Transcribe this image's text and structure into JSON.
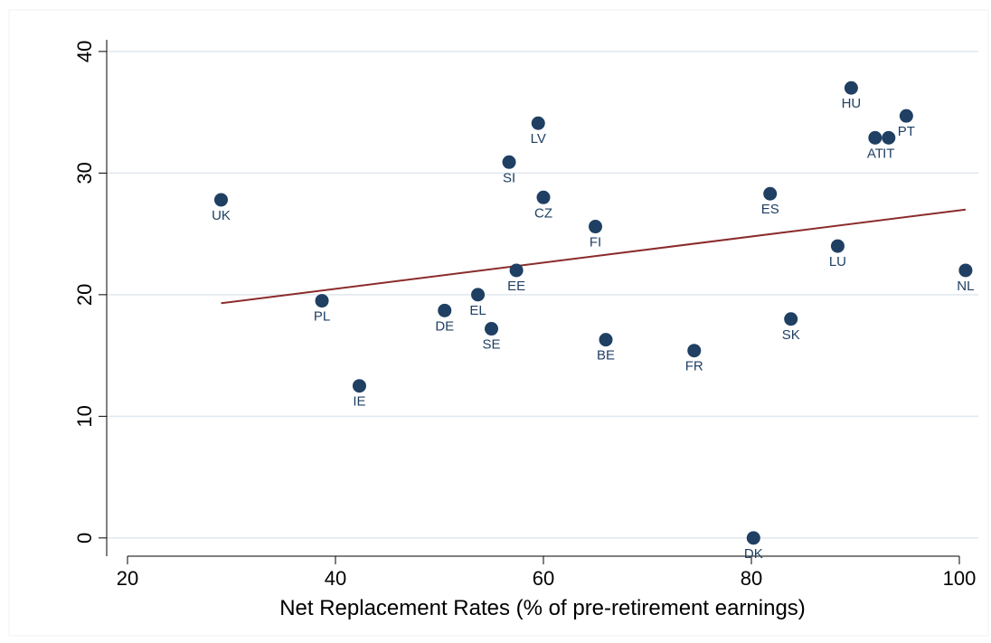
{
  "chart_data": {
    "type": "scatter",
    "title": "",
    "xlabel": "Net Replacement Rates (% of pre-retirement earnings)",
    "ylabel": "",
    "xlim": [
      18,
      102
    ],
    "ylim": [
      -1.5,
      42
    ],
    "xticks": [
      20,
      40,
      60,
      80,
      100
    ],
    "yticks": [
      0,
      10,
      20,
      30,
      40
    ],
    "grid": "horizontal",
    "legend": "none",
    "colors": {
      "points": "#1f3f63",
      "labels": "#1f3f63",
      "fit_line": "#8b2b2b",
      "grid": "#dfe8ee",
      "axis": "#000000"
    },
    "points": [
      {
        "label": "UK",
        "x": 29.0,
        "y": 27.8
      },
      {
        "label": "PL",
        "x": 38.7,
        "y": 19.5
      },
      {
        "label": "IE",
        "x": 42.3,
        "y": 12.5
      },
      {
        "label": "DE",
        "x": 50.5,
        "y": 18.7
      },
      {
        "label": "EL",
        "x": 53.7,
        "y": 20.0
      },
      {
        "label": "SE",
        "x": 55.0,
        "y": 17.2
      },
      {
        "label": "EE",
        "x": 57.4,
        "y": 22.0
      },
      {
        "label": "SI",
        "x": 56.7,
        "y": 30.9
      },
      {
        "label": "LV",
        "x": 59.5,
        "y": 34.1
      },
      {
        "label": "CZ",
        "x": 60.0,
        "y": 28.0
      },
      {
        "label": "FI",
        "x": 65.0,
        "y": 25.6
      },
      {
        "label": "BE",
        "x": 66.0,
        "y": 16.3
      },
      {
        "label": "FR",
        "x": 74.5,
        "y": 15.4
      },
      {
        "label": "DK",
        "x": 80.2,
        "y": 0.0
      },
      {
        "label": "ES",
        "x": 81.8,
        "y": 28.3
      },
      {
        "label": "SK",
        "x": 83.8,
        "y": 18.0
      },
      {
        "label": "LU",
        "x": 88.3,
        "y": 24.0
      },
      {
        "label": "HU",
        "x": 89.6,
        "y": 37.0
      },
      {
        "label": "AT",
        "x": 91.9,
        "y": 32.9
      },
      {
        "label": "IT",
        "x": 93.2,
        "y": 32.9
      },
      {
        "label": "PT",
        "x": 94.9,
        "y": 34.7
      },
      {
        "label": "NL",
        "x": 100.6,
        "y": 22.0
      }
    ],
    "fit_line": {
      "x": [
        29.0,
        100.6
      ],
      "y": [
        19.3,
        27.0
      ]
    }
  }
}
